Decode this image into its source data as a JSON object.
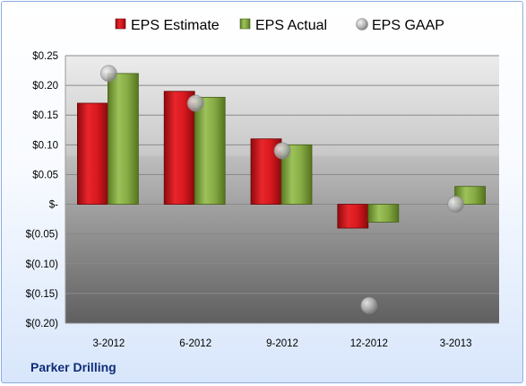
{
  "company_label": "Parker Drilling",
  "legend": [
    {
      "label": "EPS Estimate",
      "marker": "square",
      "color": "#c8151b"
    },
    {
      "label": "EPS Actual",
      "marker": "square",
      "color": "#7ea23c"
    },
    {
      "label": "EPS GAAP",
      "marker": "circle",
      "color": "#a8a8a8"
    }
  ],
  "chart_data": {
    "type": "bar",
    "categories": [
      "3-2012",
      "6-2012",
      "9-2012",
      "12-2012",
      "3-2013"
    ],
    "series": [
      {
        "name": "EPS Estimate",
        "type": "bar",
        "color": "#c8151b",
        "values": [
          0.17,
          0.19,
          0.11,
          -0.04,
          null
        ]
      },
      {
        "name": "EPS Actual",
        "type": "bar",
        "color": "#7ea23c",
        "values": [
          0.22,
          0.18,
          0.1,
          -0.03,
          0.03
        ]
      },
      {
        "name": "EPS GAAP",
        "type": "scatter",
        "color": "#a8a8a8",
        "values": [
          0.22,
          0.17,
          0.09,
          -0.17,
          0.0
        ]
      }
    ],
    "yticks": [
      0.25,
      0.2,
      0.15,
      0.1,
      0.05,
      0,
      -0.05,
      -0.1,
      -0.15,
      -0.2
    ],
    "ytick_labels": [
      "$0.25",
      "$0.20",
      "$0.15",
      "$0.10",
      "$0.05",
      "$-",
      "$(0.05)",
      "$(0.10)",
      "$(0.15)",
      "$(0.20)"
    ],
    "ylim": [
      -0.2,
      0.25
    ],
    "grid": true,
    "legend_position": "top"
  }
}
